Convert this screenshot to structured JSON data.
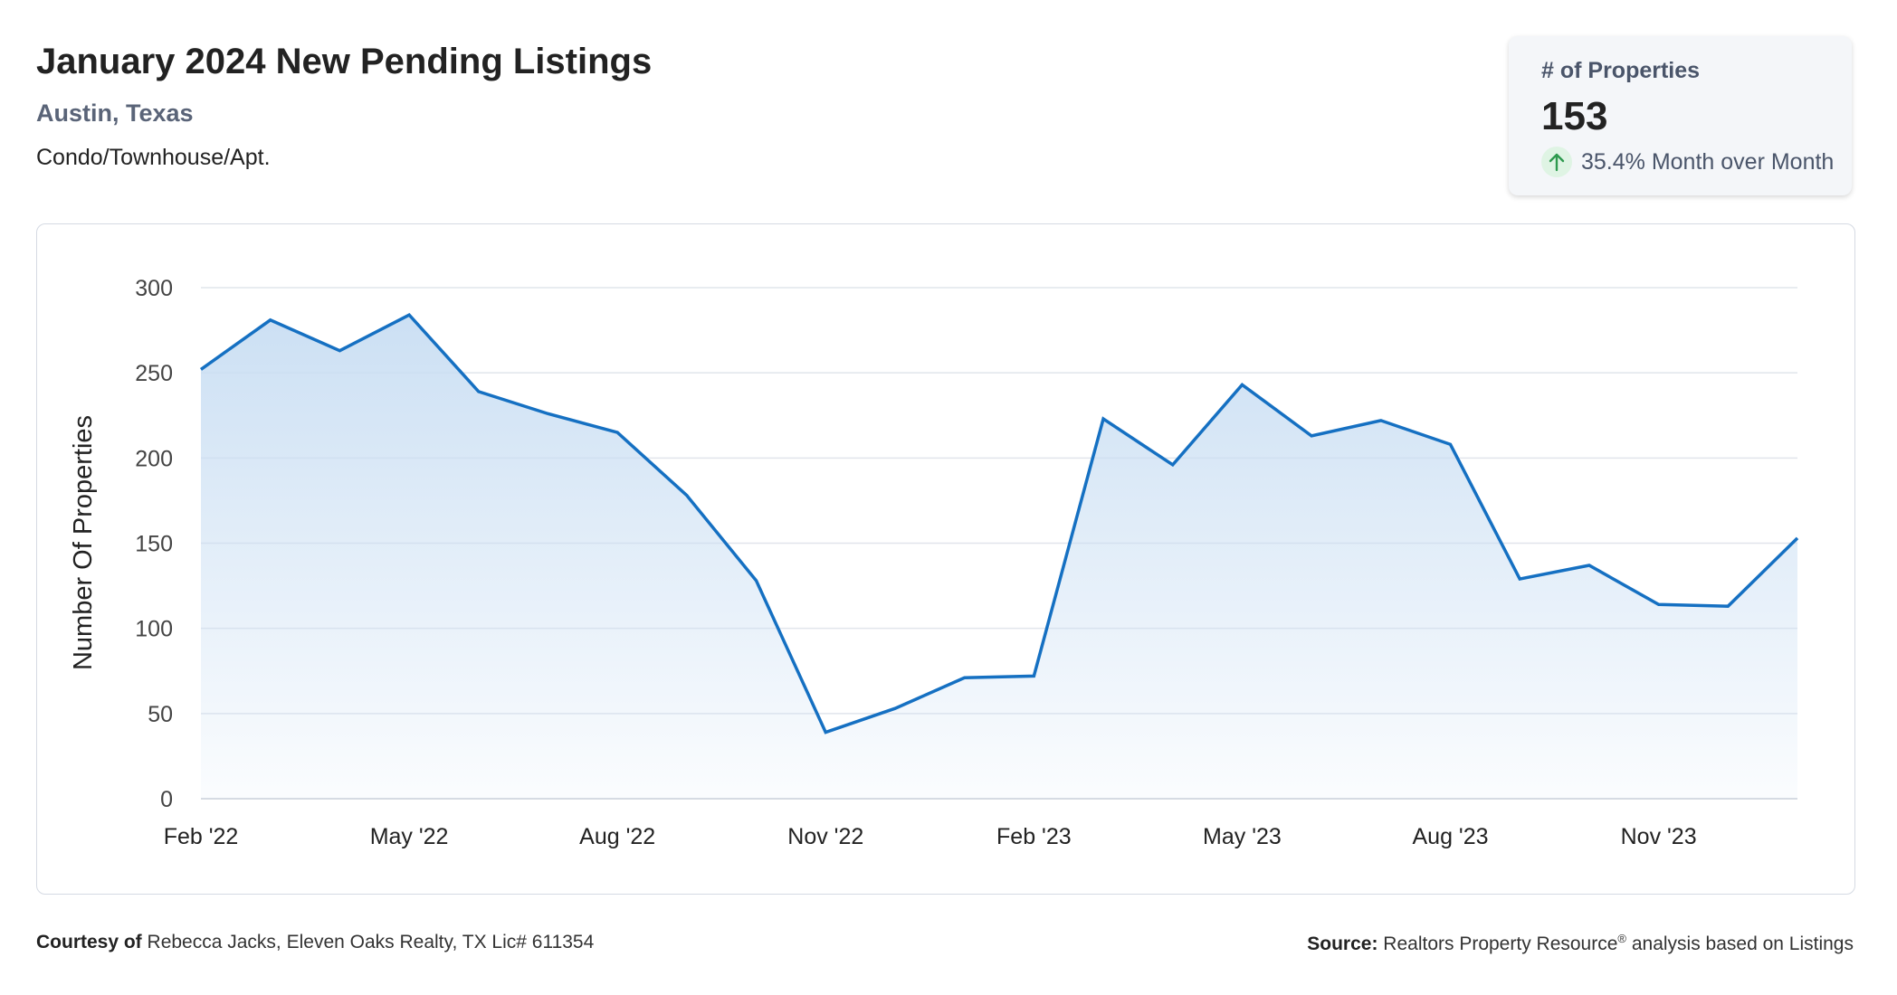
{
  "header": {
    "title": "January 2024 New Pending Listings",
    "location": "Austin, Texas",
    "property_type": "Condo/Townhouse/Apt."
  },
  "stat_card": {
    "label": "# of Properties",
    "value": "153",
    "change": "35.4% Month over Month",
    "change_direction": "up",
    "change_icon": "arrow-up-icon",
    "icon_color": "#2e9a4f"
  },
  "chart_data": {
    "type": "area",
    "title": "",
    "xlabel": "",
    "ylabel": "Number Of Properties",
    "ylim": [
      0,
      300
    ],
    "yticks": [
      0,
      50,
      100,
      150,
      200,
      250,
      300
    ],
    "xticks": [
      "Feb '22",
      "May '22",
      "Aug '22",
      "Nov '22",
      "Feb '23",
      "May '23",
      "Aug '23",
      "Nov '23"
    ],
    "x": [
      "Feb 2022",
      "Mar 2022",
      "Apr 2022",
      "May 2022",
      "Jun 2022",
      "Jul 2022",
      "Aug 2022",
      "Sep 2022",
      "Oct 2022",
      "Nov 2022",
      "Dec 2022",
      "Jan 2023",
      "Feb 2023",
      "Mar 2023",
      "Apr 2023",
      "May 2023",
      "Jun 2023",
      "Jul 2023",
      "Aug 2023",
      "Sep 2023",
      "Oct 2023",
      "Nov 2023",
      "Dec 2023",
      "Jan 2024"
    ],
    "series": [
      {
        "values": [
          252,
          281,
          263,
          284,
          239,
          226,
          215,
          178,
          128,
          39,
          53,
          71,
          72,
          223,
          196,
          243,
          213,
          222,
          208,
          129,
          137,
          114,
          113,
          153
        ]
      }
    ],
    "grid": true,
    "line_color": "#1570c2",
    "fill_color": "#c9def3"
  },
  "footer": {
    "courtesy_label": "Courtesy of",
    "courtesy_text": "Rebecca Jacks, Eleven Oaks Realty, TX Lic# 611354",
    "source_label": "Source:",
    "source_text_1": "Realtors Property Resource",
    "source_sup": "®",
    "source_text_2": " analysis based on Listings"
  }
}
